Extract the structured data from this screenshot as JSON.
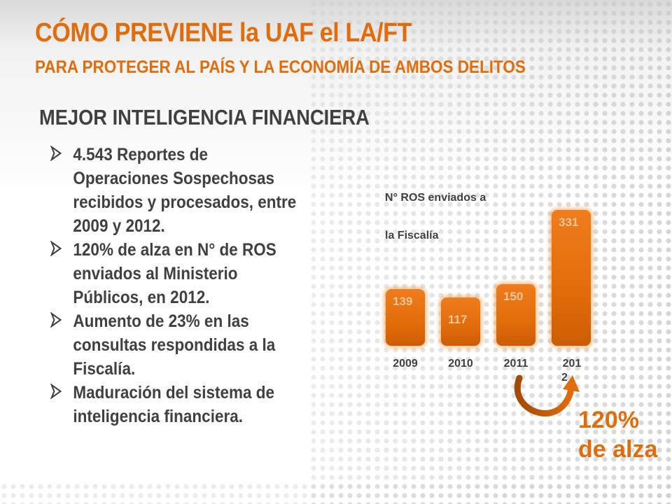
{
  "slide": {
    "title": "CÓMO PREVIENE la UAF el LA/FT",
    "subtitle": "PARA PROTEGER AL PAÍS Y LA ECONOMÍA DE AMBOS DELITOS",
    "section_heading": "MEJOR INTELIGENCIA FINANCIERA",
    "bullets": [
      "4.543 Reportes de Operaciones Sospechosas recibidos y procesados, entre 2009 y 2012.",
      "120% de alza en N° de ROS enviados al Ministerio Públicos, en 2012.",
      "Aumento de 23% en las consultas respondidas a la Fiscalía.",
      "Maduración del sistema de inteligencia financiera."
    ],
    "growth_callout": {
      "value": "120%",
      "text": "de alza"
    },
    "colors": {
      "accent": "#e36c0a",
      "text": "#404040",
      "bar_label": "#f5c79b"
    },
    "icons": {
      "bullet": "arrowhead-bullet-icon",
      "growth": "curved-arrow-icon"
    }
  },
  "chart_data": {
    "type": "bar",
    "title": "",
    "ylabel_lines": [
      "N° ROS enviados a",
      "la Fiscalía"
    ],
    "xlabel": "",
    "categories": [
      "2009",
      "2010",
      "2011",
      "201\n2"
    ],
    "values": [
      139,
      117,
      150,
      331
    ],
    "ylim": [
      0,
      331
    ],
    "grid": false,
    "legend": "none"
  }
}
